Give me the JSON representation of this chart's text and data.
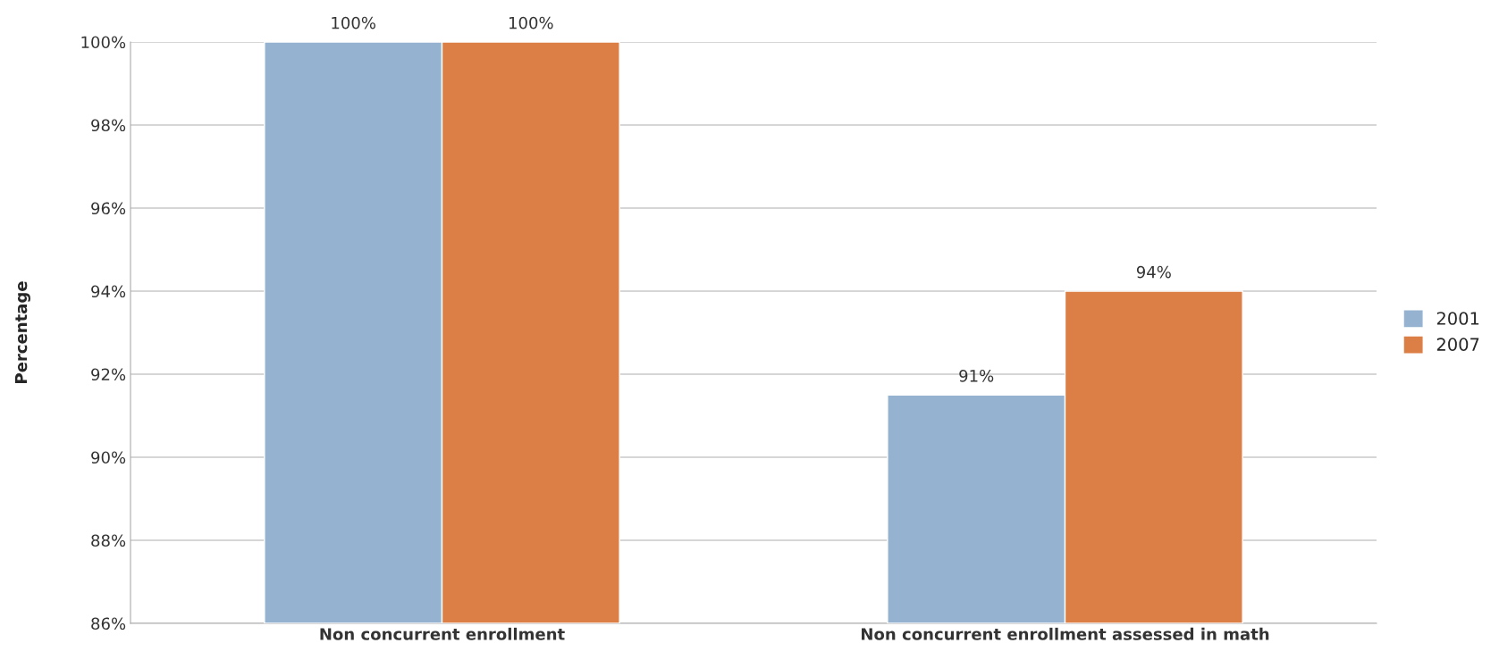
{
  "chart_data": {
    "type": "bar",
    "ylabel": "Percentage",
    "categories": [
      "Non concurrent enrollment",
      "Non concurrent enrollment assessed in math"
    ],
    "series": [
      {
        "name": "2001",
        "color": "#95b3d1",
        "values": [
          100,
          91.5
        ],
        "value_labels": [
          "100%",
          "91%"
        ]
      },
      {
        "name": "2007",
        "color": "#dc7f46",
        "values": [
          100,
          94
        ],
        "value_labels": [
          "100%",
          "94%"
        ]
      }
    ],
    "ylim": [
      86,
      100
    ],
    "yticks": [
      {
        "value": 86,
        "label": "86%"
      },
      {
        "value": 88,
        "label": "88%"
      },
      {
        "value": 90,
        "label": "90%"
      },
      {
        "value": 92,
        "label": "92%"
      },
      {
        "value": 94,
        "label": "94%"
      },
      {
        "value": 96,
        "label": "96%"
      },
      {
        "value": 98,
        "label": "98%"
      },
      {
        "value": 100,
        "label": "100%"
      }
    ],
    "grid": "y",
    "legend": "right"
  }
}
